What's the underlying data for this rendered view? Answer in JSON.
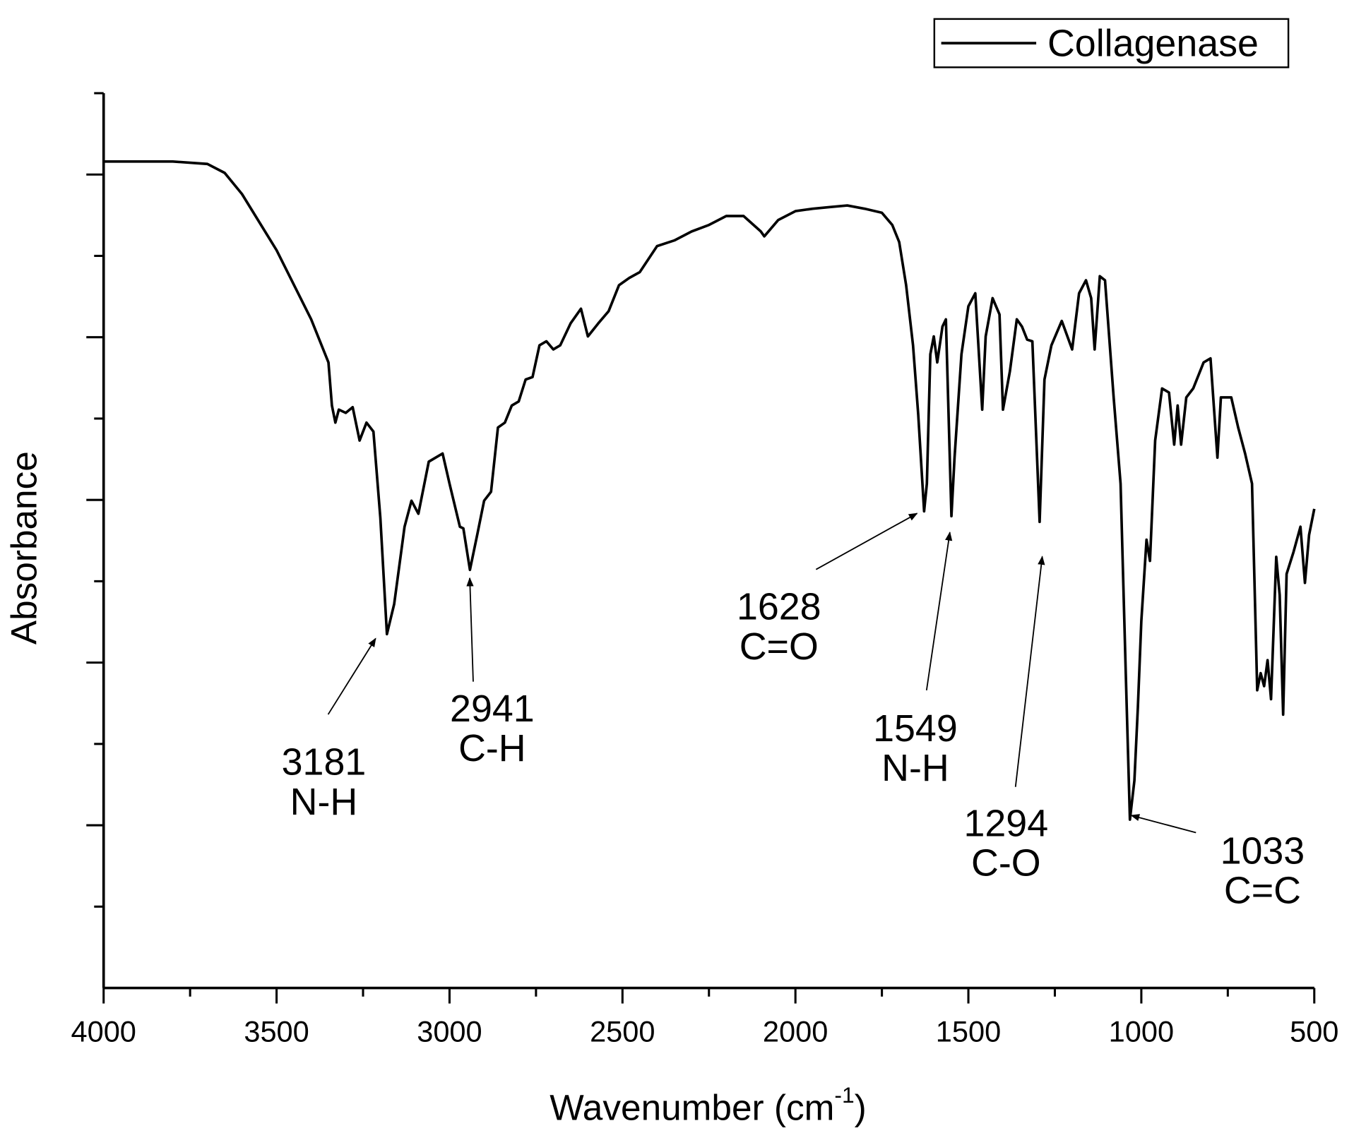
{
  "chart_data": {
    "type": "line",
    "xlabel": {
      "text": "Wavenumber (cm",
      "sup": "-1",
      "end": ")"
    },
    "ylabel": "Absorbance",
    "xlim": [
      4000,
      500
    ],
    "xticks": [
      4000,
      3500,
      3000,
      2500,
      2000,
      1500,
      1000,
      500
    ],
    "xminorticks": [
      3750,
      3250,
      2750,
      2250,
      1750,
      1250,
      750
    ],
    "ylim": [
      0,
      11
    ],
    "yticks": [
      2,
      4,
      6,
      8,
      10
    ],
    "yminorticks": [
      1,
      3,
      5,
      7,
      9,
      11
    ],
    "legend": "top-right",
    "x": [
      4000,
      3800,
      3700,
      3650,
      3600,
      3500,
      3400,
      3350,
      3340,
      3330,
      3320,
      3300,
      3280,
      3260,
      3240,
      3220,
      3200,
      3181,
      3160,
      3130,
      3110,
      3090,
      3060,
      3020,
      3000,
      2970,
      2960,
      2941,
      2920,
      2900,
      2880,
      2860,
      2840,
      2820,
      2800,
      2780,
      2760,
      2740,
      2720,
      2700,
      2680,
      2650,
      2620,
      2600,
      2570,
      2540,
      2510,
      2480,
      2450,
      2400,
      2350,
      2300,
      2250,
      2200,
      2150,
      2100,
      2090,
      2050,
      2000,
      1950,
      1900,
      1850,
      1800,
      1750,
      1720,
      1700,
      1680,
      1660,
      1645,
      1628,
      1620,
      1610,
      1600,
      1590,
      1575,
      1565,
      1549,
      1540,
      1520,
      1500,
      1480,
      1460,
      1450,
      1430,
      1410,
      1400,
      1380,
      1360,
      1345,
      1330,
      1315,
      1294,
      1280,
      1260,
      1230,
      1200,
      1180,
      1160,
      1145,
      1135,
      1120,
      1105,
      1080,
      1060,
      1045,
      1033,
      1020,
      1010,
      1000,
      985,
      975,
      960,
      940,
      920,
      905,
      895,
      885,
      870,
      850,
      820,
      800,
      780,
      770,
      740,
      720,
      700,
      680,
      665,
      655,
      645,
      635,
      625,
      610,
      600,
      590,
      580,
      560,
      540,
      527,
      515,
      500
    ],
    "series": [
      {
        "name": "Collagenase",
        "color": "#000000",
        "values": [
          10.16,
          10.16,
          10.13,
          10.02,
          9.76,
          9.07,
          8.22,
          7.69,
          7.16,
          6.95,
          7.11,
          7.07,
          7.14,
          6.73,
          6.95,
          6.84,
          5.78,
          4.35,
          4.72,
          5.67,
          5.99,
          5.83,
          6.47,
          6.57,
          6.2,
          5.67,
          5.65,
          5.14,
          5.57,
          5.99,
          6.1,
          6.89,
          6.95,
          7.16,
          7.21,
          7.48,
          7.51,
          7.9,
          7.95,
          7.85,
          7.9,
          8.17,
          8.35,
          8.01,
          8.17,
          8.32,
          8.64,
          8.73,
          8.8,
          9.12,
          9.19,
          9.3,
          9.38,
          9.49,
          9.49,
          9.3,
          9.24,
          9.44,
          9.55,
          9.58,
          9.6,
          9.62,
          9.58,
          9.53,
          9.38,
          9.17,
          8.64,
          7.9,
          7.05,
          5.86,
          6.2,
          7.79,
          8.01,
          7.69,
          8.13,
          8.22,
          5.8,
          6.52,
          7.79,
          8.38,
          8.54,
          7.11,
          8.01,
          8.48,
          8.28,
          7.11,
          7.58,
          8.22,
          8.13,
          7.97,
          7.95,
          5.73,
          7.48,
          7.9,
          8.2,
          7.85,
          8.54,
          8.7,
          8.48,
          7.85,
          8.75,
          8.7,
          7.26,
          6.2,
          3.87,
          2.07,
          2.55,
          3.45,
          4.51,
          5.51,
          5.25,
          6.73,
          7.37,
          7.32,
          6.68,
          7.16,
          6.68,
          7.26,
          7.37,
          7.69,
          7.74,
          6.52,
          7.26,
          7.26,
          6.89,
          6.57,
          6.2,
          3.66,
          3.87,
          3.71,
          4.03,
          3.55,
          5.3,
          4.83,
          3.36,
          5.09,
          5.36,
          5.67,
          4.98,
          5.57,
          5.89
        ]
      }
    ],
    "annotations": [
      {
        "label": "3181",
        "group": "N-H"
      },
      {
        "label": "2941",
        "group": "C-H"
      },
      {
        "label": "1628",
        "group": "C=O"
      },
      {
        "label": "1549",
        "group": "N-H"
      },
      {
        "label": "1294",
        "group": "C-O"
      },
      {
        "label": "1033",
        "group": "C=C"
      }
    ]
  }
}
